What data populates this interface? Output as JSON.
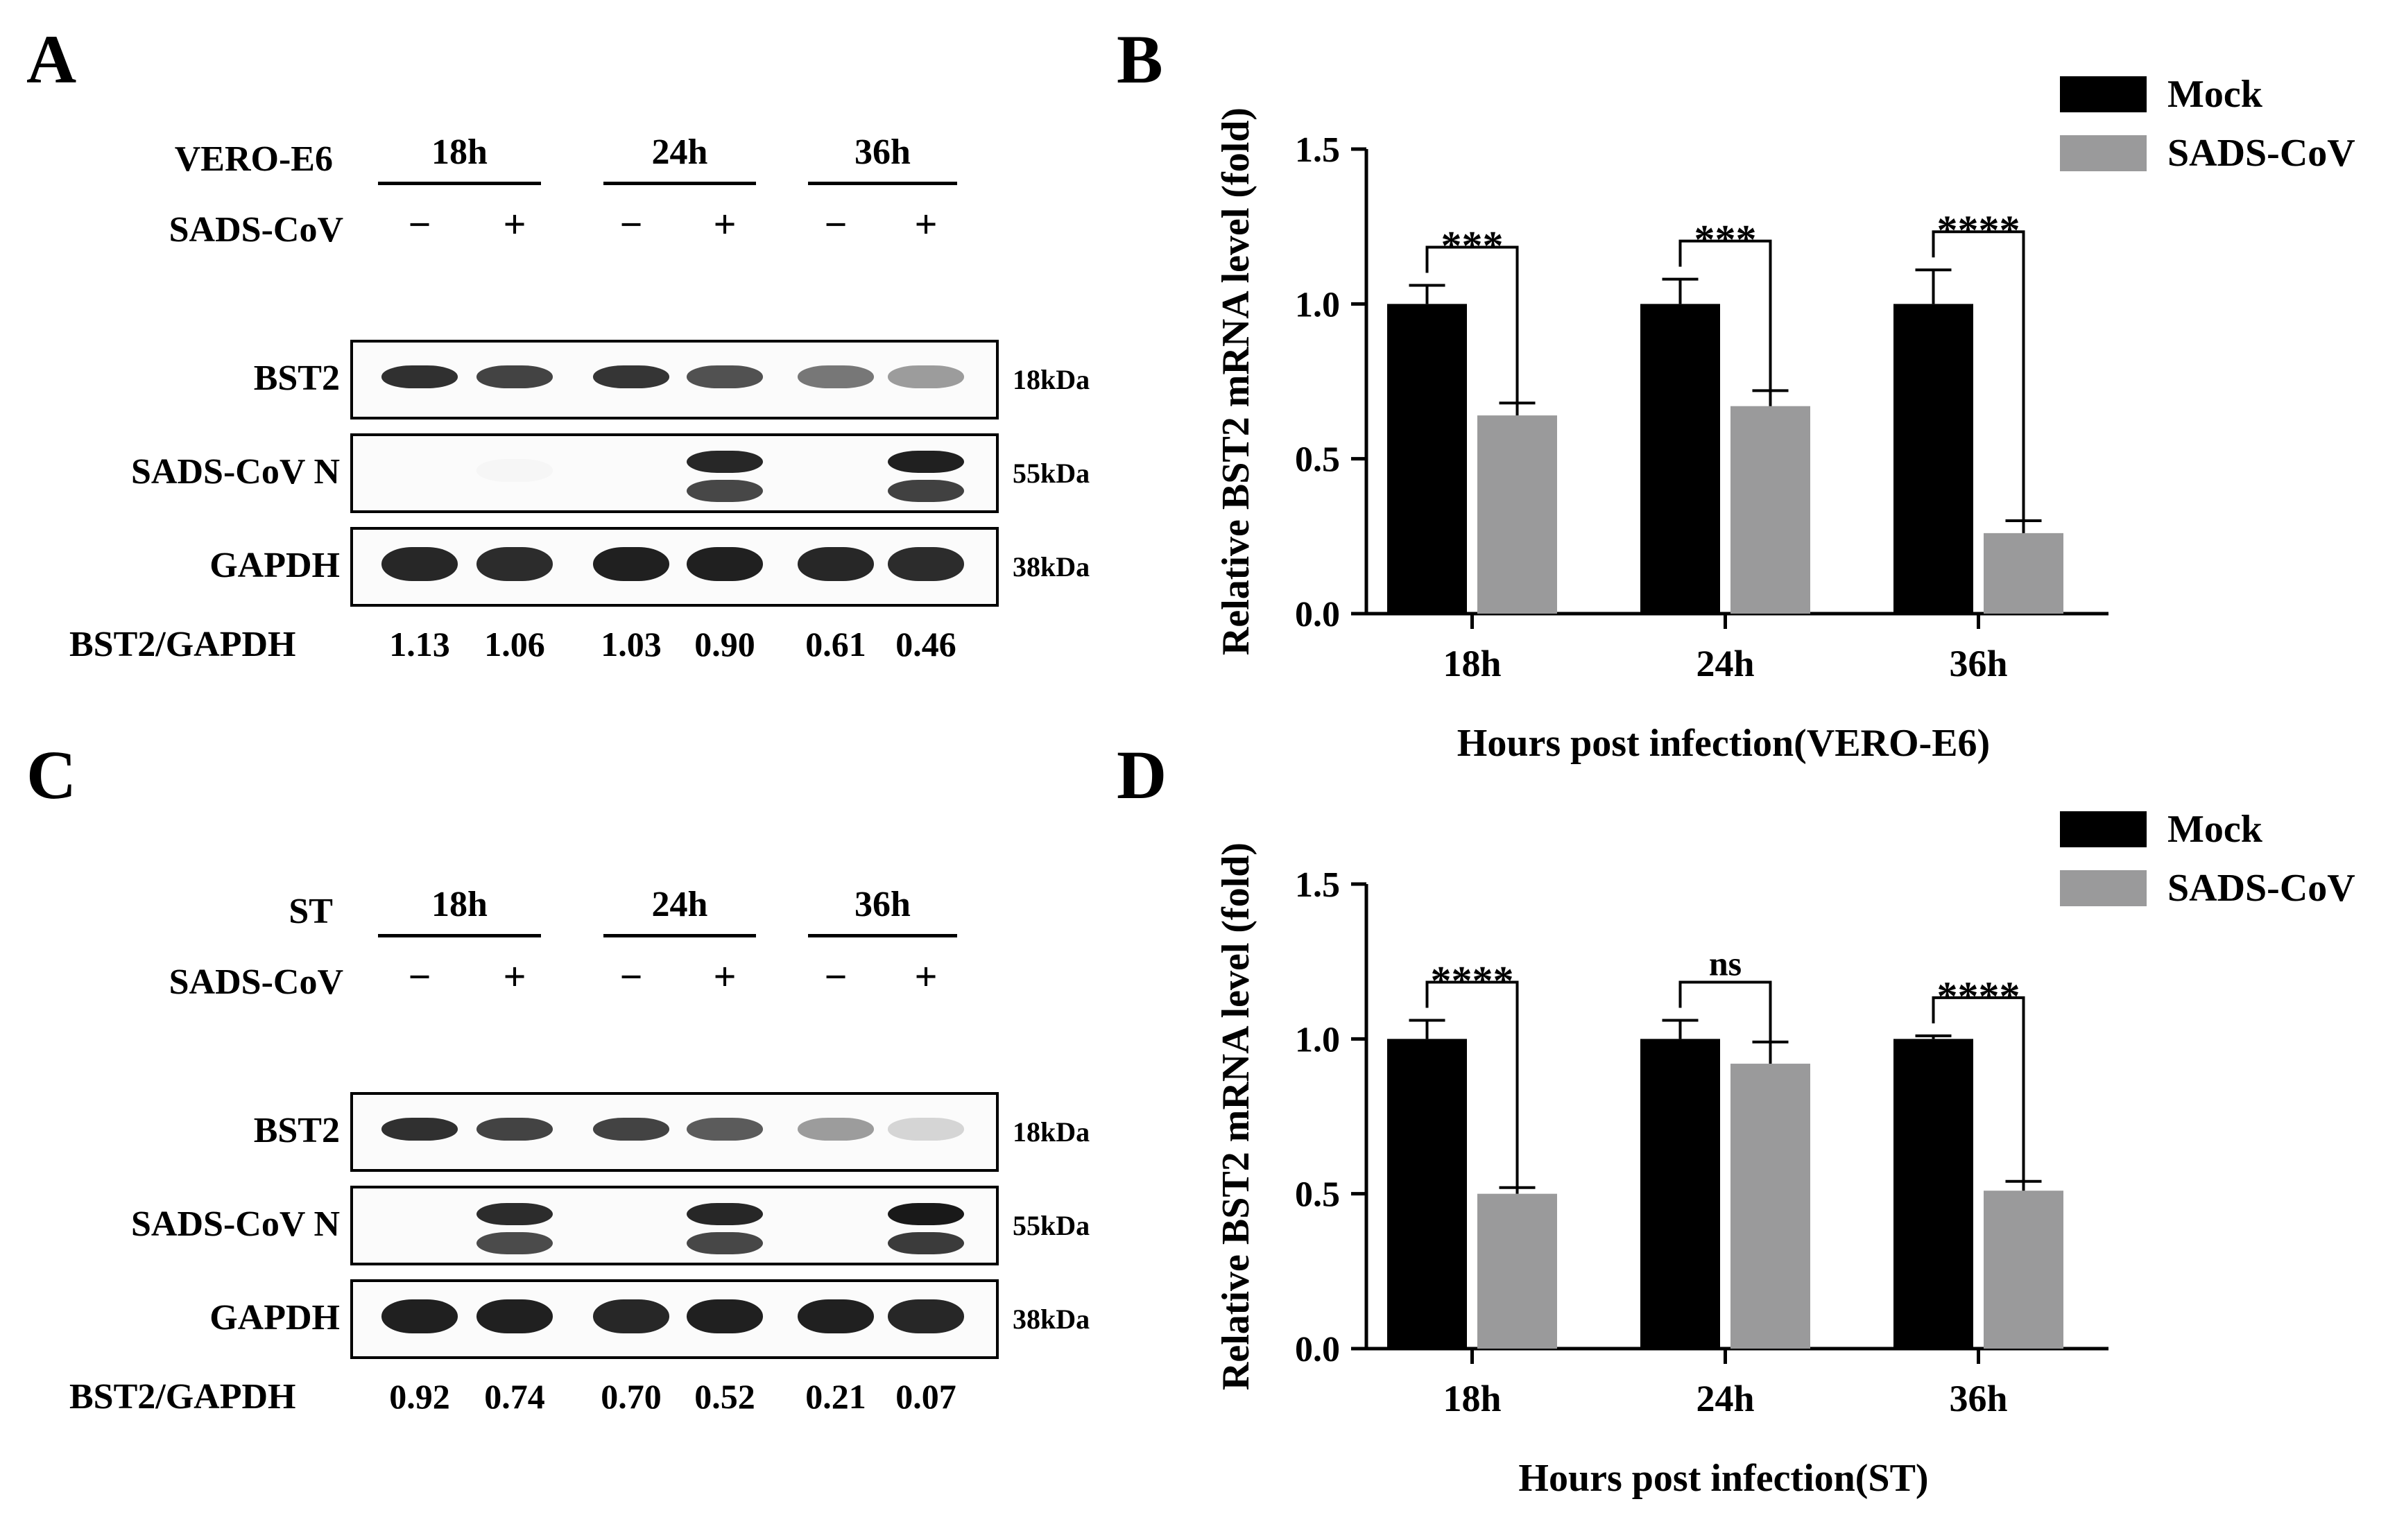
{
  "panels": {
    "A": {
      "letter": "A",
      "cell_label": "VERO-E6",
      "times": [
        "18h",
        "24h",
        "36h"
      ],
      "treatment_label": "SADS-CoV",
      "signs": [
        "−",
        "+",
        "−",
        "+",
        "−",
        "+"
      ],
      "blots": [
        {
          "label": "BST2",
          "mw": "18kDa",
          "intensity": [
            0.88,
            0.8,
            0.86,
            0.74,
            0.58,
            0.42
          ]
        },
        {
          "label": "SADS-CoV N",
          "mw": "55kDa",
          "intensity": [
            0.0,
            0.04,
            0.0,
            0.92,
            0.0,
            0.95
          ]
        },
        {
          "label": "GAPDH",
          "mw": "38kDa",
          "intensity": [
            0.92,
            0.9,
            0.95,
            0.95,
            0.92,
            0.9
          ]
        }
      ],
      "ratio_label": "BST2/GAPDH",
      "ratios": [
        "1.13",
        "1.06",
        "1.03",
        "0.90",
        "0.61",
        "0.46"
      ]
    },
    "B": {
      "letter": "B"
    },
    "C": {
      "letter": "C",
      "cell_label": "ST",
      "times": [
        "18h",
        "24h",
        "36h"
      ],
      "treatment_label": "SADS-CoV",
      "signs": [
        "−",
        "+",
        "−",
        "+",
        "−",
        "+"
      ],
      "blots": [
        {
          "label": "BST2",
          "mw": "18kDa",
          "intensity": [
            0.88,
            0.8,
            0.8,
            0.7,
            0.42,
            0.18
          ]
        },
        {
          "label": "SADS-CoV N",
          "mw": "55kDa",
          "intensity": [
            0.0,
            0.9,
            0.0,
            0.92,
            0.0,
            0.98
          ]
        },
        {
          "label": "GAPDH",
          "mw": "38kDa",
          "intensity": [
            0.95,
            0.95,
            0.92,
            0.95,
            0.95,
            0.92
          ]
        }
      ],
      "ratio_label": "BST2/GAPDH",
      "ratios": [
        "0.92",
        "0.74",
        "0.70",
        "0.52",
        "0.21",
        "0.07"
      ]
    },
    "D": {
      "letter": "D"
    }
  },
  "colors": {
    "mock": "#000000",
    "sads": "#9a9a9b"
  },
  "chart_data": [
    {
      "type": "bar",
      "categories": [
        "18h",
        "24h",
        "36h"
      ],
      "series": [
        {
          "name": "Mock",
          "values": [
            1.0,
            1.0,
            1.0
          ],
          "errors": [
            0.06,
            0.08,
            0.11
          ]
        },
        {
          "name": "SADS-CoV",
          "values": [
            0.64,
            0.67,
            0.26
          ],
          "errors": [
            0.04,
            0.05,
            0.04
          ]
        }
      ],
      "significance": [
        "***",
        "***",
        "****"
      ],
      "xlabel": "Hours post infection(VERO-E6)",
      "ylabel": "Relative BST2 mRNA level (fold)",
      "ylim": [
        0,
        1.5
      ],
      "yticks": [
        "0.0",
        "0.5",
        "1.0",
        "1.5"
      ],
      "legend_position": "top-right"
    },
    {
      "type": "bar",
      "categories": [
        "18h",
        "24h",
        "36h"
      ],
      "series": [
        {
          "name": "Mock",
          "values": [
            1.0,
            1.0,
            1.0
          ],
          "errors": [
            0.06,
            0.06,
            0.01
          ]
        },
        {
          "name": "SADS-CoV",
          "values": [
            0.5,
            0.92,
            0.51
          ],
          "errors": [
            0.02,
            0.07,
            0.03
          ]
        }
      ],
      "significance": [
        "****",
        "ns",
        "****"
      ],
      "xlabel": "Hours post infection(ST)",
      "ylabel": "Relative BST2 mRNA level (fold)",
      "ylim": [
        0,
        1.5
      ],
      "yticks": [
        "0.0",
        "0.5",
        "1.0",
        "1.5"
      ],
      "legend_position": "top-right"
    }
  ]
}
